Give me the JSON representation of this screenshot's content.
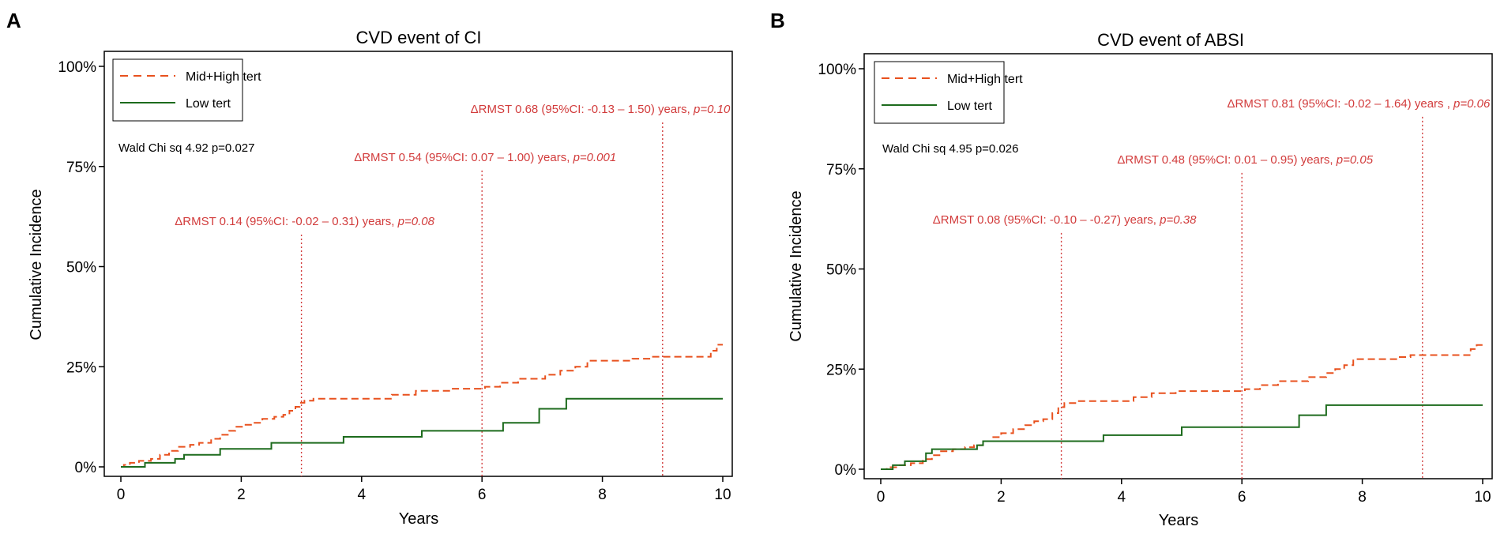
{
  "colors": {
    "mid_high": "#e8511e",
    "low": "#1d6b1d",
    "annot": "#d23c3c",
    "axis": "#000000"
  },
  "chart_data": [
    {
      "panel_label": "A",
      "type": "line",
      "title": "CVD event of CI",
      "xlabel": "Years",
      "ylabel": "Cumulative Incidence",
      "xlim": [
        0,
        10
      ],
      "ylim": [
        0,
        100
      ],
      "x_ticks": [
        0,
        2,
        4,
        6,
        8,
        10
      ],
      "y_ticks": [
        0,
        25,
        50,
        75,
        100
      ],
      "y_tick_labels": [
        "0%",
        "25%",
        "50%",
        "75%",
        "100%"
      ],
      "legend": {
        "position": "top-left",
        "entries": [
          "Mid+High tert",
          "Low tert"
        ]
      },
      "stat_text": "Wald Chi sq 4.92 p=0.027",
      "series": [
        {
          "name": "Mid+High tert",
          "style": "dashed",
          "color": "#e8511e",
          "steps": [
            [
              0,
              0
            ],
            [
              0.05,
              0.5
            ],
            [
              0.15,
              1
            ],
            [
              0.3,
              1.5
            ],
            [
              0.5,
              2
            ],
            [
              0.65,
              3
            ],
            [
              0.8,
              4
            ],
            [
              0.95,
              5
            ],
            [
              1.15,
              5.5
            ],
            [
              1.3,
              6
            ],
            [
              1.5,
              7
            ],
            [
              1.65,
              8
            ],
            [
              1.8,
              9
            ],
            [
              1.9,
              10
            ],
            [
              2.05,
              10.5
            ],
            [
              2.2,
              11
            ],
            [
              2.35,
              12
            ],
            [
              2.55,
              12.5
            ],
            [
              2.7,
              13
            ],
            [
              2.8,
              14
            ],
            [
              2.9,
              15
            ],
            [
              2.97,
              16
            ],
            [
              3.05,
              16.5
            ],
            [
              3.2,
              17
            ],
            [
              4.5,
              18
            ],
            [
              4.9,
              19
            ],
            [
              5.5,
              19.5
            ],
            [
              6.05,
              20
            ],
            [
              6.3,
              21
            ],
            [
              6.6,
              22
            ],
            [
              7.05,
              23
            ],
            [
              7.3,
              24
            ],
            [
              7.55,
              25
            ],
            [
              7.75,
              26.5
            ],
            [
              8.5,
              27
            ],
            [
              8.8,
              27.5
            ],
            [
              9.8,
              29
            ],
            [
              9.9,
              30.5
            ],
            [
              10,
              30.5
            ]
          ]
        },
        {
          "name": "Low tert",
          "style": "solid",
          "color": "#1d6b1d",
          "steps": [
            [
              0,
              0
            ],
            [
              0.4,
              1
            ],
            [
              0.9,
              2
            ],
            [
              1.05,
              3
            ],
            [
              1.65,
              4.5
            ],
            [
              2.5,
              6
            ],
            [
              3.7,
              7.5
            ],
            [
              5.0,
              9
            ],
            [
              6.35,
              11
            ],
            [
              6.95,
              14.5
            ],
            [
              7.4,
              17
            ],
            [
              10,
              17
            ]
          ]
        }
      ],
      "rmst_lines": [
        {
          "x": 3,
          "top_pct": 58,
          "label": "ΔRMST 0.14 (95%CI: -0.02 – 0.31) years,",
          "p": "p=0.08"
        },
        {
          "x": 6,
          "top_pct": 74,
          "label": "ΔRMST 0.54 (95%CI: 0.07 – 1.00) years,",
          "p": "p=0.001"
        },
        {
          "x": 9,
          "top_pct": 86,
          "label": "ΔRMST 0.68 (95%CI: -0.13 – 1.50) years,",
          "p": "p=0.10"
        }
      ]
    },
    {
      "panel_label": "B",
      "type": "line",
      "title": "CVD event of ABSI",
      "xlabel": "Years",
      "ylabel": "Cumulative Incidence",
      "xlim": [
        0,
        10
      ],
      "ylim": [
        0,
        100
      ],
      "x_ticks": [
        0,
        2,
        4,
        6,
        8,
        10
      ],
      "y_ticks": [
        0,
        25,
        50,
        75,
        100
      ],
      "y_tick_labels": [
        "0%",
        "25%",
        "50%",
        "75%",
        "100%"
      ],
      "legend": {
        "position": "top-left",
        "entries": [
          "Mid+High tert",
          "Low tert"
        ]
      },
      "stat_text": "Wald Chi sq 4.95 p=0.026",
      "series": [
        {
          "name": "Mid+High tert",
          "style": "dashed",
          "color": "#e8511e",
          "steps": [
            [
              0,
              0
            ],
            [
              0.1,
              0.5
            ],
            [
              0.3,
              1
            ],
            [
              0.5,
              1.5
            ],
            [
              0.7,
              2.5
            ],
            [
              0.85,
              3.5
            ],
            [
              1.0,
              4.5
            ],
            [
              1.2,
              5
            ],
            [
              1.4,
              5.5
            ],
            [
              1.55,
              6
            ],
            [
              1.7,
              7
            ],
            [
              1.85,
              8
            ],
            [
              2.0,
              9
            ],
            [
              2.2,
              10
            ],
            [
              2.4,
              11
            ],
            [
              2.55,
              12
            ],
            [
              2.7,
              12.5
            ],
            [
              2.85,
              14
            ],
            [
              2.95,
              15.5
            ],
            [
              3.05,
              16.5
            ],
            [
              3.25,
              17
            ],
            [
              4.2,
              18
            ],
            [
              4.5,
              19
            ],
            [
              4.9,
              19.5
            ],
            [
              5.8,
              19.5
            ],
            [
              6.05,
              20
            ],
            [
              6.3,
              21
            ],
            [
              6.6,
              22
            ],
            [
              7.1,
              23
            ],
            [
              7.4,
              24
            ],
            [
              7.55,
              25
            ],
            [
              7.7,
              26
            ],
            [
              7.85,
              27.5
            ],
            [
              8.6,
              28
            ],
            [
              8.8,
              28.5
            ],
            [
              9.8,
              30
            ],
            [
              9.9,
              31
            ],
            [
              10,
              31
            ]
          ]
        },
        {
          "name": "Low tert",
          "style": "solid",
          "color": "#1d6b1d",
          "steps": [
            [
              0,
              0
            ],
            [
              0.2,
              1
            ],
            [
              0.4,
              2
            ],
            [
              0.75,
              4
            ],
            [
              0.85,
              5
            ],
            [
              1.6,
              6
            ],
            [
              1.7,
              7
            ],
            [
              3.7,
              8.5
            ],
            [
              5.0,
              10.5
            ],
            [
              6.95,
              13.5
            ],
            [
              7.4,
              16
            ],
            [
              10,
              16
            ]
          ]
        }
      ],
      "rmst_lines": [
        {
          "x": 3,
          "top_pct": 59,
          "label": "ΔRMST 0.08 (95%CI: -0.10 – -0.27) years,",
          "p": "p=0.38"
        },
        {
          "x": 6,
          "top_pct": 74,
          "label": "ΔRMST 0.48 (95%CI: 0.01 – 0.95) years,",
          "p": "p=0.05"
        },
        {
          "x": 9,
          "top_pct": 88,
          "label": "ΔRMST 0.81 (95%CI: -0.02 – 1.64) years ,",
          "p": "p=0.06"
        }
      ]
    }
  ]
}
